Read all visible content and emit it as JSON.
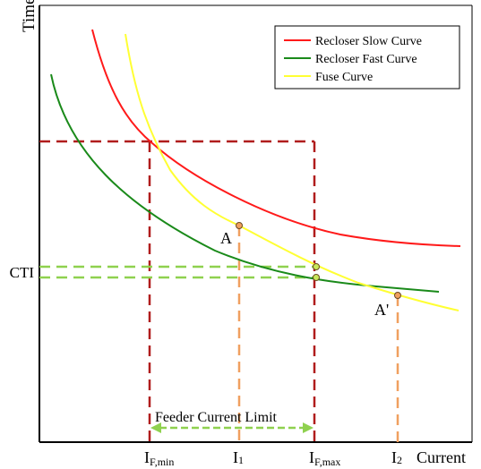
{
  "axes": {
    "ylabel": "Time",
    "xlabel": "Current",
    "y_marker": "CTI"
  },
  "legend": {
    "items": [
      {
        "label": "Recloser Slow Curve",
        "color": "#ff1a1a"
      },
      {
        "label": "Recloser Fast Curve",
        "color": "#1a8a1a"
      },
      {
        "label": "Fuse Curve",
        "color": "#ffff33"
      }
    ]
  },
  "points": {
    "A": "A",
    "A_prime": "A'"
  },
  "x_ticks": {
    "if_min_main": "I",
    "if_min_sub": "F,min",
    "i1_main": "I",
    "i1_sub": "1",
    "if_max_main": "I",
    "if_max_sub": "F,max",
    "i2_main": "I",
    "i2_sub": "2"
  },
  "annotation": {
    "feeder_limit": "Feeder Current Limit"
  },
  "colors": {
    "dark_red": "#b01c1c",
    "orange": "#f0a060",
    "light_green": "#8fd14f",
    "feeder_arrow": "#8fd14f",
    "point_fill": "#f0a060"
  }
}
